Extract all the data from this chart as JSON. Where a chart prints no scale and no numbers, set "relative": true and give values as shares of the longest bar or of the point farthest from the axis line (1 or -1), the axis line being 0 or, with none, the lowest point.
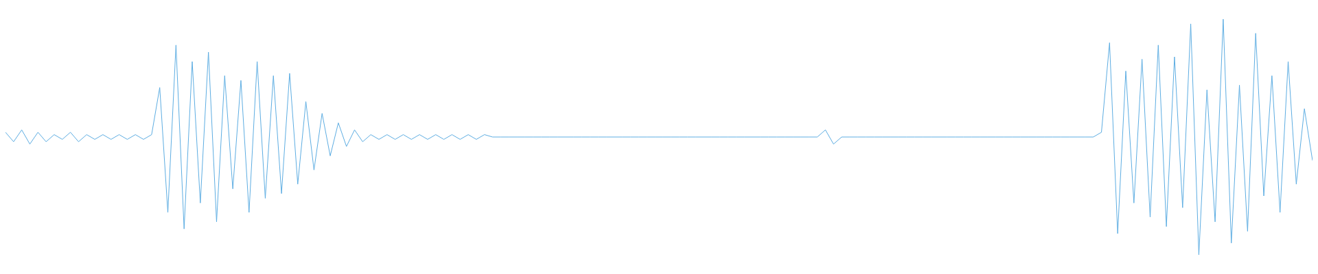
{
  "chart_data": {
    "type": "line",
    "relative": true,
    "categories": [
      null,
      null,
      null,
      null,
      null,
      null,
      null,
      null,
      null,
      null,
      null,
      null,
      null,
      null,
      null,
      null,
      null,
      null,
      null,
      null,
      null,
      null,
      null,
      null,
      null,
      null,
      null,
      null,
      null,
      null,
      null,
      null,
      null,
      null,
      null,
      null,
      null,
      null,
      null,
      null,
      null,
      null,
      null,
      null,
      null,
      null,
      null,
      null,
      null,
      null,
      null,
      null,
      null,
      null,
      null,
      null,
      null,
      null,
      null,
      null,
      null,
      null,
      null,
      null,
      null,
      null,
      null,
      null,
      null,
      null,
      null,
      null,
      null,
      null,
      null,
      null,
      null,
      null,
      null,
      null,
      null,
      null,
      null,
      null,
      null,
      null,
      null,
      null,
      null,
      null,
      null,
      null,
      null,
      null,
      null,
      null,
      null,
      null,
      null,
      null,
      null,
      null,
      null,
      null,
      null,
      null,
      null,
      null,
      null,
      null,
      null,
      null,
      null,
      null,
      null,
      null,
      null,
      null,
      null,
      null,
      null,
      null,
      null,
      null,
      null,
      null,
      null,
      null,
      null,
      null,
      null,
      null,
      null,
      null,
      null,
      null,
      null,
      null,
      null,
      null,
      null,
      null,
      null,
      null,
      null,
      null,
      null,
      null,
      null,
      null,
      null,
      null,
      null,
      null,
      null,
      null,
      null,
      null,
      null,
      null,
      null,
      null
    ],
    "series": [
      {
        "color": "#5dade2",
        "values": [
          0.52,
          0.48,
          0.53,
          0.47,
          0.52,
          0.48,
          0.51,
          0.49,
          0.52,
          0.48,
          0.51,
          0.49,
          0.51,
          0.49,
          0.51,
          0.49,
          0.51,
          0.49,
          0.51,
          0.71,
          0.18,
          0.89,
          0.11,
          0.82,
          0.22,
          0.86,
          0.14,
          0.76,
          0.28,
          0.74,
          0.18,
          0.82,
          0.24,
          0.76,
          0.26,
          0.77,
          0.3,
          0.65,
          0.36,
          0.6,
          0.42,
          0.56,
          0.46,
          0.53,
          0.48,
          0.51,
          0.49,
          0.51,
          0.49,
          0.51,
          0.49,
          0.51,
          0.49,
          0.51,
          0.49,
          0.51,
          0.49,
          0.51,
          0.49,
          0.51,
          0.5,
          0.5,
          0.5,
          0.5,
          0.5,
          0.5,
          0.5,
          0.5,
          0.5,
          0.5,
          0.5,
          0.5,
          0.5,
          0.5,
          0.5,
          0.5,
          0.5,
          0.5,
          0.5,
          0.5,
          0.5,
          0.5,
          0.5,
          0.5,
          0.5,
          0.5,
          0.5,
          0.5,
          0.5,
          0.5,
          0.5,
          0.5,
          0.5,
          0.5,
          0.5,
          0.5,
          0.5,
          0.5,
          0.5,
          0.5,
          0.5,
          0.53,
          0.47,
          0.5,
          0.5,
          0.5,
          0.5,
          0.5,
          0.5,
          0.5,
          0.5,
          0.5,
          0.5,
          0.5,
          0.5,
          0.5,
          0.5,
          0.5,
          0.5,
          0.5,
          0.5,
          0.5,
          0.5,
          0.5,
          0.5,
          0.5,
          0.5,
          0.5,
          0.5,
          0.5,
          0.5,
          0.5,
          0.5,
          0.5,
          0.5,
          0.52,
          0.9,
          0.09,
          0.78,
          0.22,
          0.83,
          0.16,
          0.89,
          0.12,
          0.84,
          0.2,
          0.98,
          0,
          0.7,
          0.14,
          1,
          0.05,
          0.72,
          0.1,
          0.94,
          0.25,
          0.76,
          0.18,
          0.82,
          0.3,
          0.62,
          0.4
        ]
      }
    ]
  }
}
